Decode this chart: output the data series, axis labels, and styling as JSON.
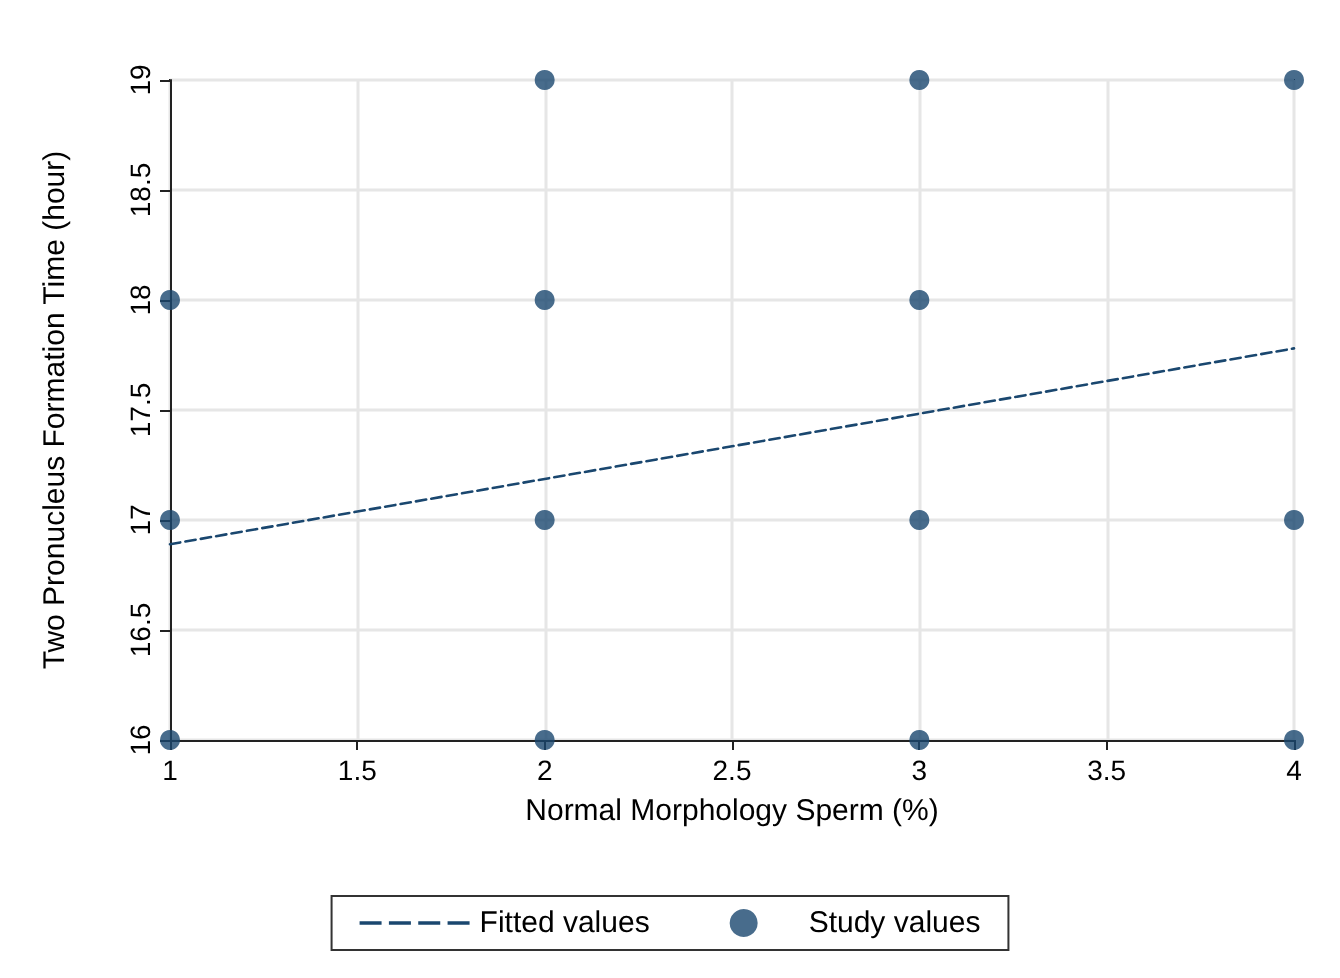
{
  "chart_data": {
    "type": "scatter",
    "xlabel": "Normal Morphology Sperm (%)",
    "ylabel": "Two Pronucleus Formation Time (hour)",
    "xlim": [
      1,
      4
    ],
    "xticks": [
      1,
      1.5,
      2,
      2.5,
      3,
      3.5,
      4
    ],
    "ylim": [
      16,
      19
    ],
    "yticks": [
      16,
      16.5,
      17,
      17.5,
      18,
      18.5,
      19
    ],
    "grid": true,
    "legend": "bottom",
    "marker": "circle",
    "series": [
      {
        "name": "Fitted values",
        "type": "line",
        "line_style": "dashed",
        "marker": "none",
        "color": "#1a476f",
        "x": [
          1,
          4
        ],
        "values": [
          16.89,
          17.78
        ]
      },
      {
        "name": "Study values",
        "color": "#1a476f",
        "x": [
          1,
          1,
          1,
          2,
          2,
          2,
          2,
          3,
          3,
          3,
          3,
          4,
          4,
          4
        ],
        "values": [
          18,
          17,
          16,
          19,
          18,
          17,
          16,
          19,
          18,
          17,
          16,
          19,
          17,
          16
        ]
      }
    ]
  }
}
